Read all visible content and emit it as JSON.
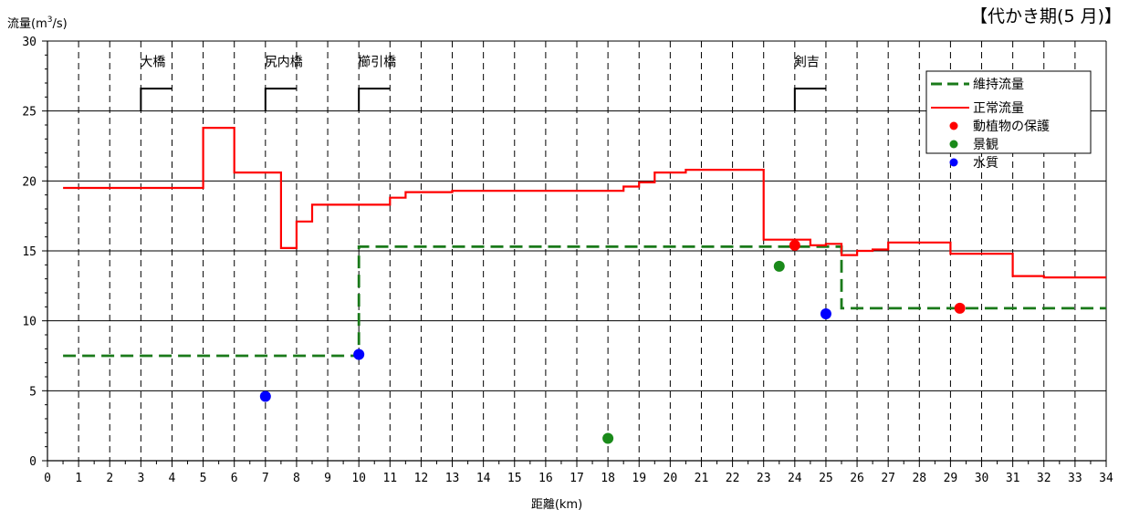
{
  "chart_data": {
    "type": "line",
    "title": "【代かき期(5 月)】",
    "ylabel_prefix": "流量(m",
    "ylabel_sup": "3",
    "ylabel_suffix": "/s)",
    "xlabel": "距離(km)",
    "xlim": [
      0,
      34
    ],
    "ylim": [
      0,
      30
    ],
    "x_ticks": [
      0,
      1,
      2,
      3,
      4,
      5,
      6,
      7,
      8,
      9,
      10,
      11,
      12,
      13,
      14,
      15,
      16,
      17,
      18,
      19,
      20,
      21,
      22,
      23,
      24,
      25,
      26,
      27,
      28,
      29,
      30,
      31,
      32,
      33,
      34
    ],
    "y_ticks": [
      0,
      5,
      10,
      15,
      20,
      25,
      30
    ],
    "grid": true,
    "legend_position": "top-right",
    "bridges": [
      {
        "name": "大橋",
        "x": 3
      },
      {
        "name": "尻内橋",
        "x": 7
      },
      {
        "name": "櫛引橋",
        "x": 10
      },
      {
        "name": "剣吉",
        "x": 24
      }
    ],
    "series": [
      {
        "name": "維持流量",
        "kind": "step",
        "color": "#1a7a1a",
        "dashed": true,
        "points": [
          [
            0.5,
            7.5
          ],
          [
            10,
            7.5
          ],
          [
            10,
            15.3
          ],
          [
            25.5,
            15.3
          ],
          [
            25.5,
            10.9
          ],
          [
            34,
            10.9
          ]
        ]
      },
      {
        "name": "正常流量",
        "kind": "step",
        "color": "#ff0000",
        "dashed": false,
        "points": [
          [
            0.5,
            19.5
          ],
          [
            5,
            19.5
          ],
          [
            5,
            23.8
          ],
          [
            6,
            23.8
          ],
          [
            6,
            20.6
          ],
          [
            7.5,
            20.6
          ],
          [
            7.5,
            15.2
          ],
          [
            8,
            15.2
          ],
          [
            8,
            17.1
          ],
          [
            8.5,
            17.1
          ],
          [
            8.5,
            18.3
          ],
          [
            11,
            18.3
          ],
          [
            11,
            18.8
          ],
          [
            11.5,
            18.8
          ],
          [
            11.5,
            19.2
          ],
          [
            13,
            19.2
          ],
          [
            13,
            19.3
          ],
          [
            18.5,
            19.3
          ],
          [
            18.5,
            19.6
          ],
          [
            19,
            19.6
          ],
          [
            19,
            19.9
          ],
          [
            19.5,
            19.9
          ],
          [
            19.5,
            20.6
          ],
          [
            20.5,
            20.6
          ],
          [
            20.5,
            20.8
          ],
          [
            23,
            20.8
          ],
          [
            23,
            15.8
          ],
          [
            24.5,
            15.8
          ],
          [
            24.5,
            15.4
          ],
          [
            25,
            15.4
          ],
          [
            25,
            15.5
          ],
          [
            25.5,
            15.5
          ],
          [
            25.5,
            14.7
          ],
          [
            26,
            14.7
          ],
          [
            26,
            15.0
          ],
          [
            26.5,
            15.0
          ],
          [
            26.5,
            15.1
          ],
          [
            27,
            15.1
          ],
          [
            27,
            15.6
          ],
          [
            29,
            15.6
          ],
          [
            29,
            14.8
          ],
          [
            31,
            14.8
          ],
          [
            31,
            13.2
          ],
          [
            32,
            13.2
          ],
          [
            32,
            13.1
          ],
          [
            34,
            13.1
          ]
        ]
      },
      {
        "name": "動植物の保護",
        "kind": "scatter",
        "color": "#ff0000",
        "points": [
          [
            24,
            15.4
          ],
          [
            29.3,
            10.9
          ]
        ]
      },
      {
        "name": "景観",
        "kind": "scatter",
        "color": "#1a8a1a",
        "points": [
          [
            23.5,
            13.9
          ],
          [
            18,
            1.6
          ]
        ]
      },
      {
        "name": "水質",
        "kind": "scatter",
        "color": "#0000ff",
        "points": [
          [
            7,
            4.6
          ],
          [
            10,
            7.6
          ],
          [
            25,
            10.5
          ]
        ]
      }
    ]
  }
}
